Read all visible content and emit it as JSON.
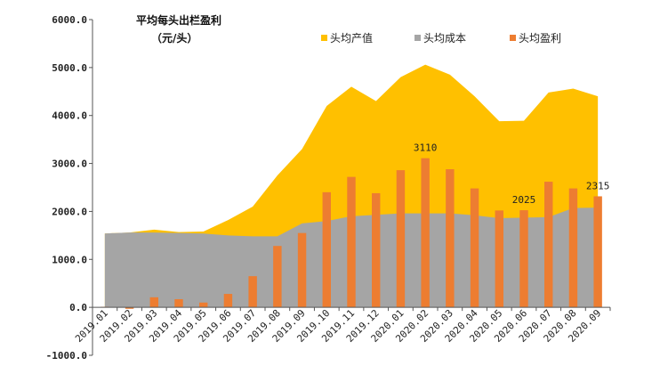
{
  "chart_data": {
    "type": "area",
    "title": "平均每头出栏盈利",
    "subtitle": "（元/头）",
    "categories": [
      "2019.01",
      "2019.02",
      "2019.03",
      "2019.04",
      "2019.05",
      "2019.06",
      "2019.07",
      "2019.08",
      "2019.09",
      "2019.10",
      "2019.11",
      "2019.12",
      "2020.01",
      "2020.02",
      "2020.03",
      "2020.04",
      "2020.05",
      "2020.06",
      "2020.07",
      "2020.08",
      "2020.09"
    ],
    "ylim": [
      -1000,
      6000
    ],
    "yticks": [
      -1000,
      0,
      1000,
      2000,
      3000,
      4000,
      5000,
      6000
    ],
    "ytick_labels": [
      "-1000.0",
      "0.0",
      "1000.0",
      "2000.0",
      "3000.0",
      "4000.0",
      "5000.0",
      "6000.0"
    ],
    "legend_position": "top-right",
    "series": [
      {
        "name": "头均产值",
        "type": "area",
        "color": "#FFC000",
        "values": [
          1540,
          1560,
          1620,
          1570,
          1580,
          1820,
          2100,
          2750,
          3300,
          4200,
          4600,
          4300,
          4800,
          5060,
          4850,
          4400,
          3880,
          3890,
          4480,
          4560,
          4400
        ]
      },
      {
        "name": "头均成本",
        "type": "area",
        "color": "#A5A5A5",
        "values": [
          1540,
          1560,
          1560,
          1550,
          1540,
          1500,
          1480,
          1480,
          1750,
          1800,
          1900,
          1930,
          1960,
          1960,
          1960,
          1920,
          1860,
          1870,
          1880,
          2070,
          2080
        ]
      },
      {
        "name": "头均盈利",
        "type": "bar",
        "color": "#ED7D31",
        "values": [
          10,
          -30,
          210,
          170,
          100,
          280,
          650,
          1280,
          1550,
          2400,
          2720,
          2380,
          2860,
          3110,
          2880,
          2480,
          2020,
          2025,
          2620,
          2480,
          2315
        ]
      }
    ],
    "data_labels": [
      {
        "category": "2020.02",
        "text": "3110"
      },
      {
        "category": "2020.06",
        "text": "2025"
      },
      {
        "category": "2020.09",
        "text": "2315"
      }
    ]
  }
}
